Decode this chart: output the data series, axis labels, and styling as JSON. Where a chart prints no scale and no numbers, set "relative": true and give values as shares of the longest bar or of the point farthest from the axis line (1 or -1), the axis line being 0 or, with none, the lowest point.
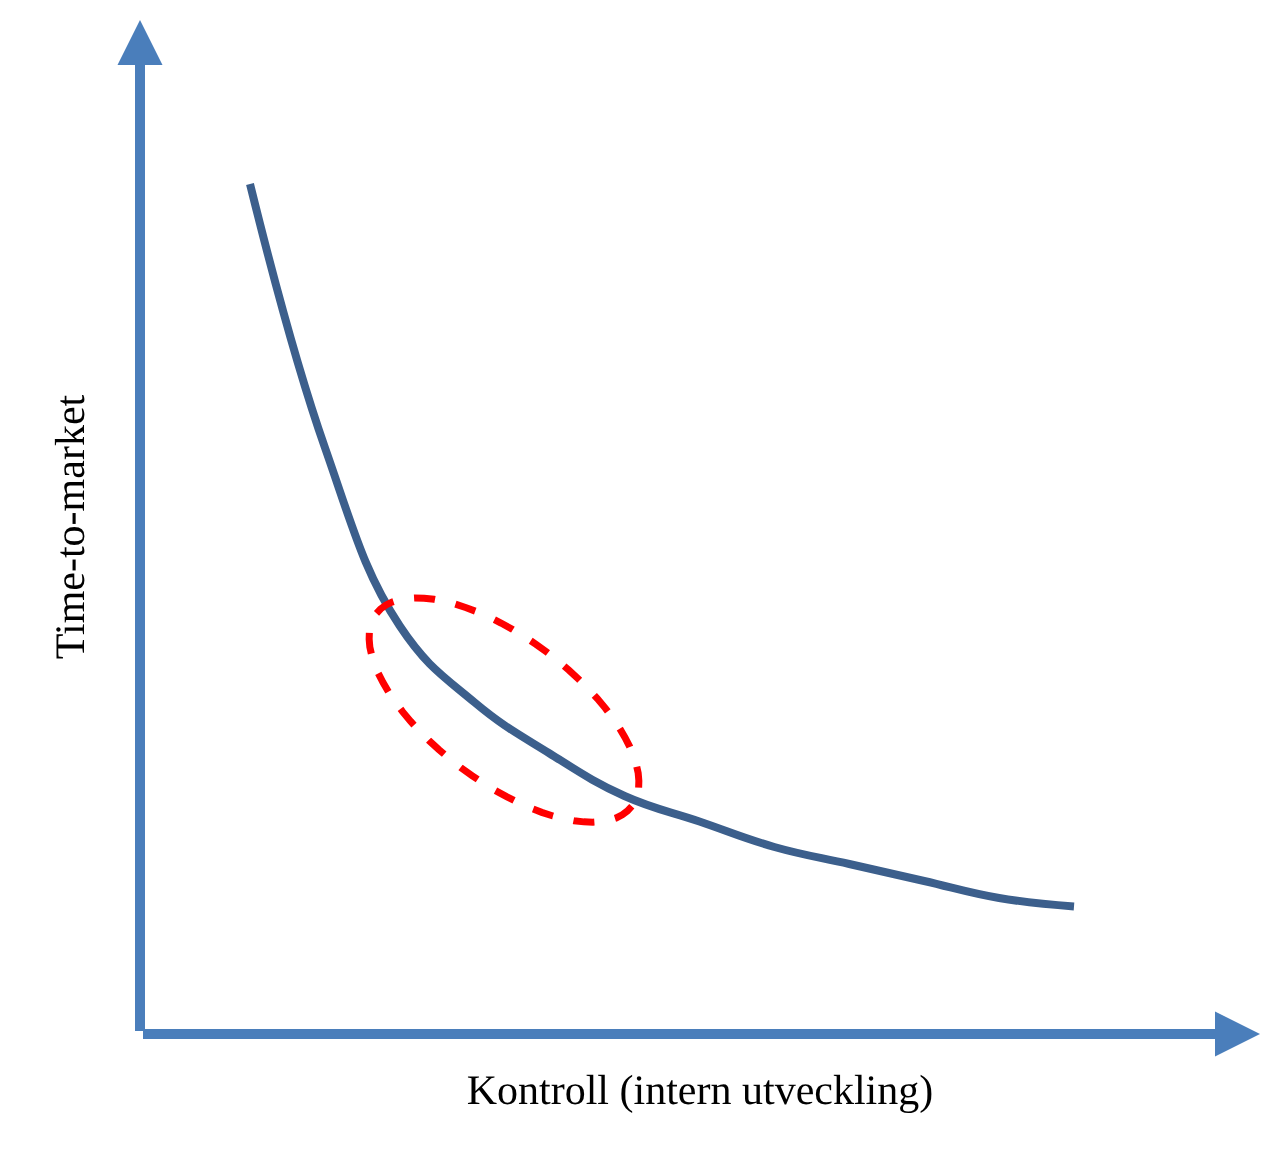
{
  "chart_data": {
    "type": "line",
    "relative": true,
    "xlabel": "Kontroll (intern utveckling)",
    "ylabel": "Time-to-market",
    "categories": [
      null,
      null,
      null,
      null,
      null,
      null,
      null,
      null,
      null,
      null,
      null,
      null
    ],
    "series": [
      {
        "color": "#3c5f8c",
        "values": [
          1,
          0.69,
          0.48,
          0.39,
          0.33,
          0.28,
          0.25,
          0.22,
          0.2,
          0.18,
          0.16,
          0.15
        ]
      }
    ],
    "marker": "none",
    "line_style": "solid"
  }
}
